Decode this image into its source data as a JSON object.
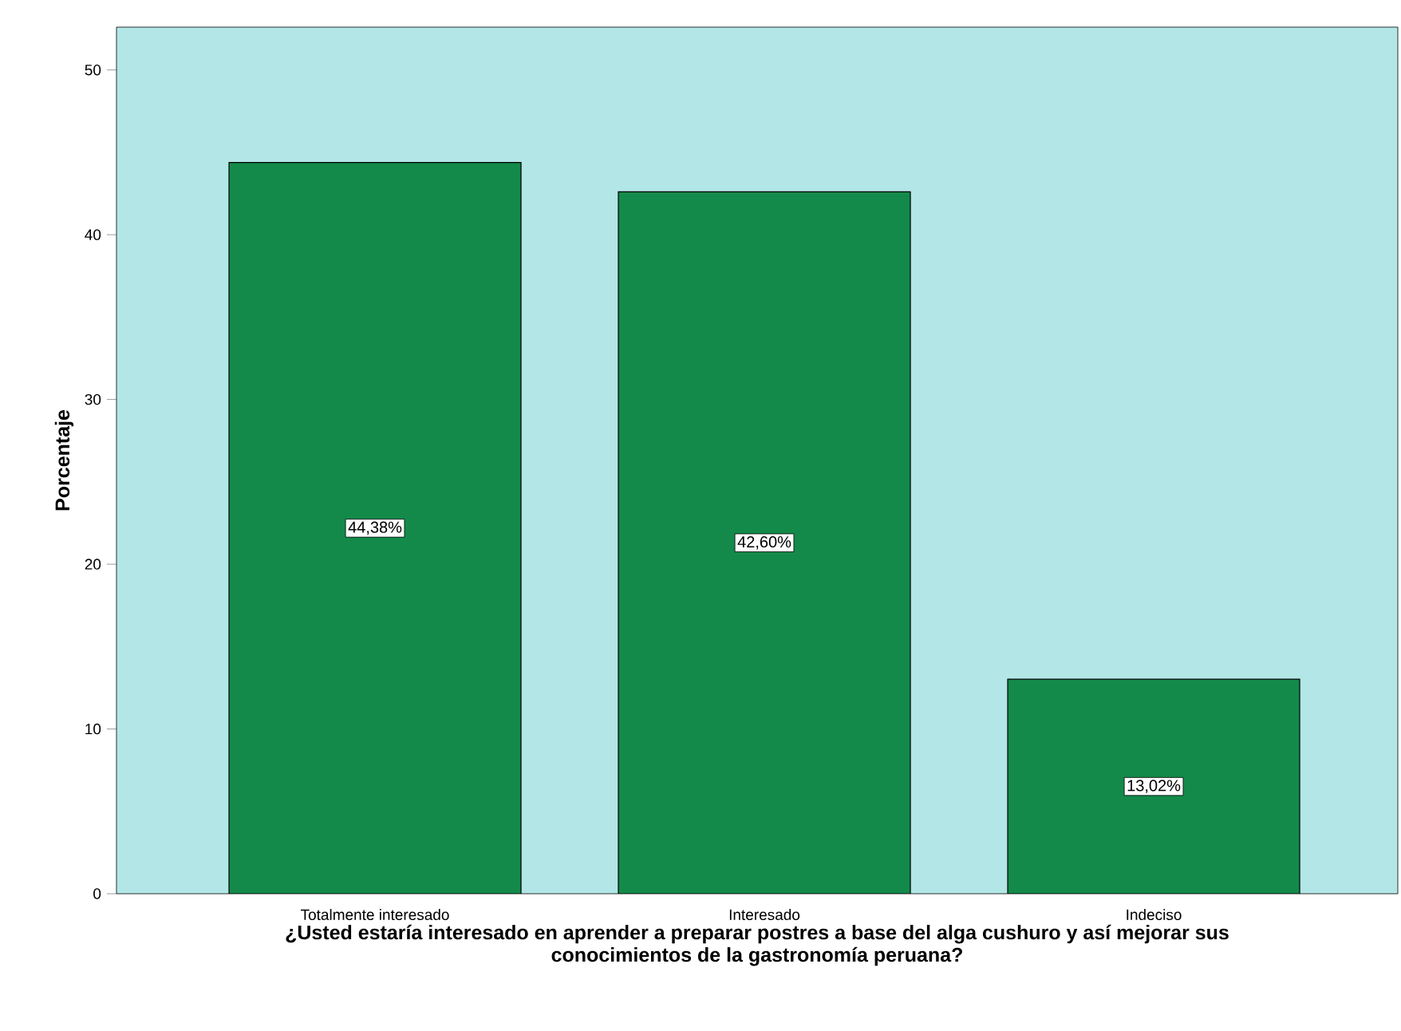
{
  "chart_data": {
    "type": "bar",
    "xlabel": "¿Usted estaría interesado en aprender a preparar postres a base del alga cushuro y así mejorar sus conocimientos de la gastronomía peruana?",
    "ylabel": "Porcentaje",
    "categories": [
      "Totalmente interesado",
      "Interesado",
      "Indeciso"
    ],
    "values": [
      44.38,
      42.6,
      13.02
    ],
    "value_labels": [
      "44,38%",
      "42,60%",
      "13,02%"
    ],
    "color": "#138a4a",
    "ylim": [
      0,
      52.6
    ],
    "yticks": [
      0,
      10,
      20,
      30,
      40,
      50
    ],
    "grid": false
  }
}
